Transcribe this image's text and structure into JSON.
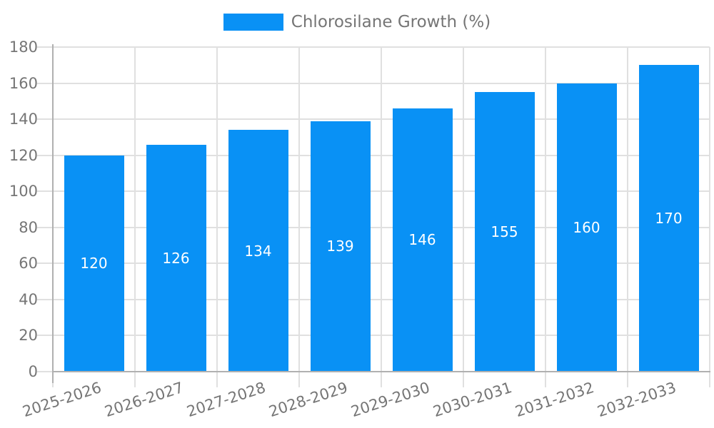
{
  "chart_data": {
    "type": "bar",
    "title": "",
    "legend": "Chlorosilane Growth (%)",
    "legend_position": "top",
    "categories": [
      "2025-2026",
      "2026-2027",
      "2027-2028",
      "2028-2029",
      "2029-2030",
      "2030-2031",
      "2031-2032",
      "2032-2033"
    ],
    "values": [
      120,
      126,
      134,
      139,
      146,
      155,
      160,
      170
    ],
    "value_labels_shown": true,
    "xlabel": "",
    "ylabel": "",
    "ylim": [
      0,
      180
    ],
    "ytick_step": 20,
    "ytick_labels": [
      "0",
      "20",
      "40",
      "60",
      "80",
      "100",
      "120",
      "140",
      "160",
      "180"
    ],
    "grid": true,
    "colors": {
      "bar": "#0991f5",
      "grid": "#e0e0e0",
      "axis": "#b0b0b0",
      "text": "#757575",
      "value_label": "#ffffff"
    }
  }
}
